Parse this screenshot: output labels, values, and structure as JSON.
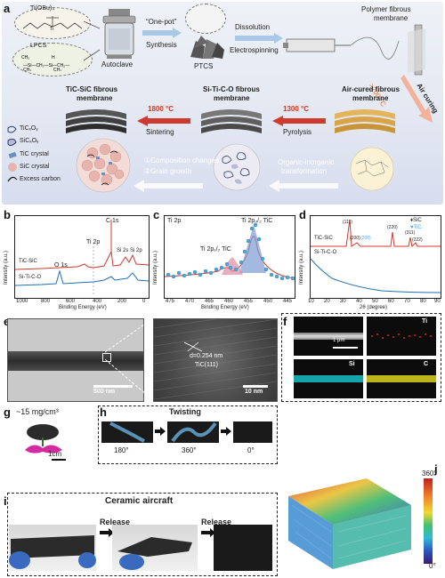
{
  "panels": {
    "a": "a",
    "b": "b",
    "c": "c",
    "d": "d",
    "e": "e",
    "f": "f",
    "g": "g",
    "h": "h",
    "i": "i",
    "j": "j"
  },
  "schematic": {
    "ti_precursor": "Ti(OBu)₄",
    "lpcs": "LPCS",
    "autoclave": "Autoclave",
    "one_pot": "“One-pot”",
    "synthesis": "Synthesis",
    "ptcs": "PTCS",
    "dissolution": "Dissolution",
    "electrospinning": "Electrospinning",
    "polymer_membrane_1": "Polymer fibrous",
    "polymer_membrane_2": "membrane",
    "temp_200": ">200 °C",
    "air_curing": "Air curing",
    "aircured_1": "Air-cured fibrous",
    "aircured_2": "membrane",
    "sitico_1": "Si-Ti-C-O fibrous",
    "sitico_2": "membrane",
    "tic_sic_1": "TiC-SiC fibrous",
    "tic_sic_2": "membrane",
    "temp_1300": "1300 °C",
    "pyrolysis": "Pyrolysis",
    "temp_1800": "1800 °C",
    "sintering": "Sintering",
    "org_inorg_1": "Organic-inorganic",
    "org_inorg_2": "transformation",
    "comp_changes": "①Composition changes",
    "grain_growth": "②Grain growth",
    "legend": [
      "TiCₓOᵧ",
      "SiCₓOᵧ",
      "TiC crystal",
      "SiC crystal",
      "Excess carbon"
    ]
  },
  "xps_survey": {
    "ylabel": "Intensity (a.u.)",
    "xlabel": "Binding Energy (eV)",
    "ticks": [
      "1000",
      "800",
      "600",
      "400",
      "200",
      "0"
    ],
    "labels": {
      "c1s": "C 1s",
      "ti2p": "Ti 2p",
      "si": "Si 2s Si 2p",
      "o1s": "O 1s"
    },
    "series": [
      "TiC-SiC",
      "Si-Ti-C-O"
    ]
  },
  "xps_ti2p": {
    "title": "Ti 2p",
    "ylabel": "Intensity (a.u.)",
    "xlabel": "Binding Energy (eV)",
    "ticks": [
      "475",
      "470",
      "465",
      "460",
      "455",
      "450",
      "445"
    ],
    "peak1": "Ti 2p₃/₂ TiC",
    "peak2": "Ti 2p₁/₂ TiC"
  },
  "xrd": {
    "ylabel": "Intensity (a.u.)",
    "xlabel": "2θ (degree)",
    "ticks": [
      "10",
      "20",
      "30",
      "40",
      "50",
      "60",
      "70",
      "80",
      "90"
    ],
    "legend_sic": "♦SiC",
    "legend_tic": "♥TiC",
    "peaks": [
      "(111)",
      "(200)",
      "(200)",
      "(220)",
      "(311)",
      "(222)"
    ],
    "series": [
      "TiC-SiC",
      "Si-Ti-C-O"
    ]
  },
  "tem": {
    "scale1": "500 nm",
    "scale2": "10 nm",
    "d_spacing": "d=0.254 nm",
    "plane": "TiC(111)"
  },
  "eds": {
    "scale": "1 μm",
    "elements": [
      "Ti",
      "Si",
      "C"
    ]
  },
  "density": {
    "label": "~15 mg/cm³",
    "scale": "1cm"
  },
  "twisting": {
    "title": "Twisting",
    "angles": [
      "180°",
      "360°",
      "0°"
    ]
  },
  "aircraft": {
    "title": "Ceramic aircraft",
    "release1": "Release",
    "release2": "Release"
  },
  "orientation": {
    "max": "360°",
    "min": "0°"
  },
  "colors": {
    "red_arrow": "#d0392b",
    "blue_trace": "#1f6fb2",
    "red_trace": "#d0392b",
    "ti_map": "#e02020",
    "si_map": "#19c0c8",
    "c_map": "#dcd21c"
  }
}
